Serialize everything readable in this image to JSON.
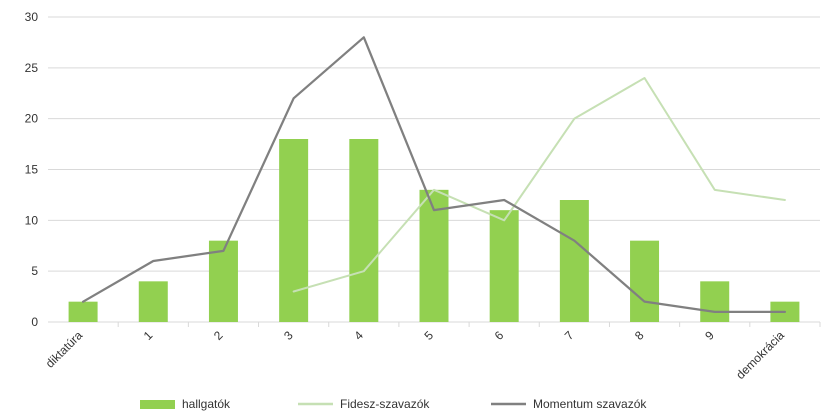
{
  "chart_data": {
    "type": "bar",
    "categories": [
      "diktatúra",
      "1",
      "2",
      "3",
      "4",
      "5",
      "6",
      "7",
      "8",
      "9",
      "demokrácia"
    ],
    "y_ticks": [
      0,
      5,
      10,
      15,
      20,
      25,
      30
    ],
    "ylim": [
      0,
      30
    ],
    "grid": true,
    "legend_position": "bottom",
    "series": [
      {
        "name": "hallgatók",
        "kind": "bar",
        "color": "#92D050",
        "values": [
          2,
          4,
          8,
          18,
          18,
          13,
          11,
          12,
          8,
          4,
          2
        ]
      },
      {
        "name": "Fidesz-szavazók",
        "kind": "line",
        "color": "#C6E0B4",
        "values": [
          null,
          null,
          null,
          3,
          5,
          13,
          10,
          20,
          24,
          13,
          12
        ]
      },
      {
        "name": "Momentum szavazók",
        "kind": "line",
        "color": "#808080",
        "values": [
          2,
          6,
          7,
          22,
          28,
          11,
          12,
          8,
          2,
          1,
          1
        ]
      }
    ]
  }
}
